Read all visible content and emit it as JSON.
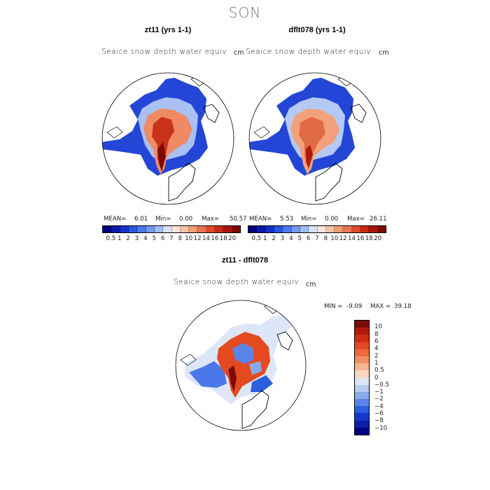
{
  "season": "SON",
  "panels": [
    {
      "title": "zt11 (yrs 1-1)",
      "field": "Seaice snow depth water equiv",
      "unit": "cm",
      "mean_label": "MEAN=",
      "mean": "6.01",
      "min_label": "Min=",
      "min": "0.00",
      "max_label": "Max=",
      "max": "50.57"
    },
    {
      "title": "dflt078 (yrs 1-1)",
      "field": "Seaice snow depth water equiv",
      "unit": "cm",
      "mean_label": "MEAN=",
      "mean": "5.53",
      "min_label": "Min=",
      "min": "0.00",
      "max_label": "Max=",
      "max": "26.11"
    }
  ],
  "colorbar_levels": [
    "0.5",
    "1",
    "2",
    "3",
    "4",
    "5",
    "6",
    "7",
    "8",
    "10",
    "12",
    "14",
    "16",
    "18",
    "20"
  ],
  "colorbar_colors": [
    "#000080",
    "#0a1aa8",
    "#1432c8",
    "#2a55e0",
    "#4a78ea",
    "#7399ef",
    "#a3bcf3",
    "#d6e1f8",
    "#fde6d8",
    "#f8c2a6",
    "#f29c78",
    "#ea7452",
    "#dd4a2a",
    "#c72a14",
    "#a8150a",
    "#7c0a05"
  ],
  "diff": {
    "title": "zt11 - dflt078",
    "field": "Seaice snow depth water equiv",
    "unit": "cm",
    "min_label": "MIN =",
    "min": "-9.09",
    "max_label": "MAX =",
    "max": "39.18",
    "levels": [
      "10",
      "8",
      "6",
      "4",
      "2",
      "1",
      "0.5",
      "0",
      "−0.5",
      "−1",
      "−2",
      "−4",
      "−6",
      "−8",
      "−10"
    ],
    "colors": [
      "#7c0a05",
      "#b01a0c",
      "#d02e12",
      "#e44a20",
      "#ef6a3c",
      "#f48e64",
      "#f8b392",
      "#fbd6c0",
      "#dce6f7",
      "#b8ccf2",
      "#8aaaee",
      "#5a84e8",
      "#2c5ee0",
      "#1438c8",
      "#0a1eaa",
      "#000080"
    ]
  }
}
